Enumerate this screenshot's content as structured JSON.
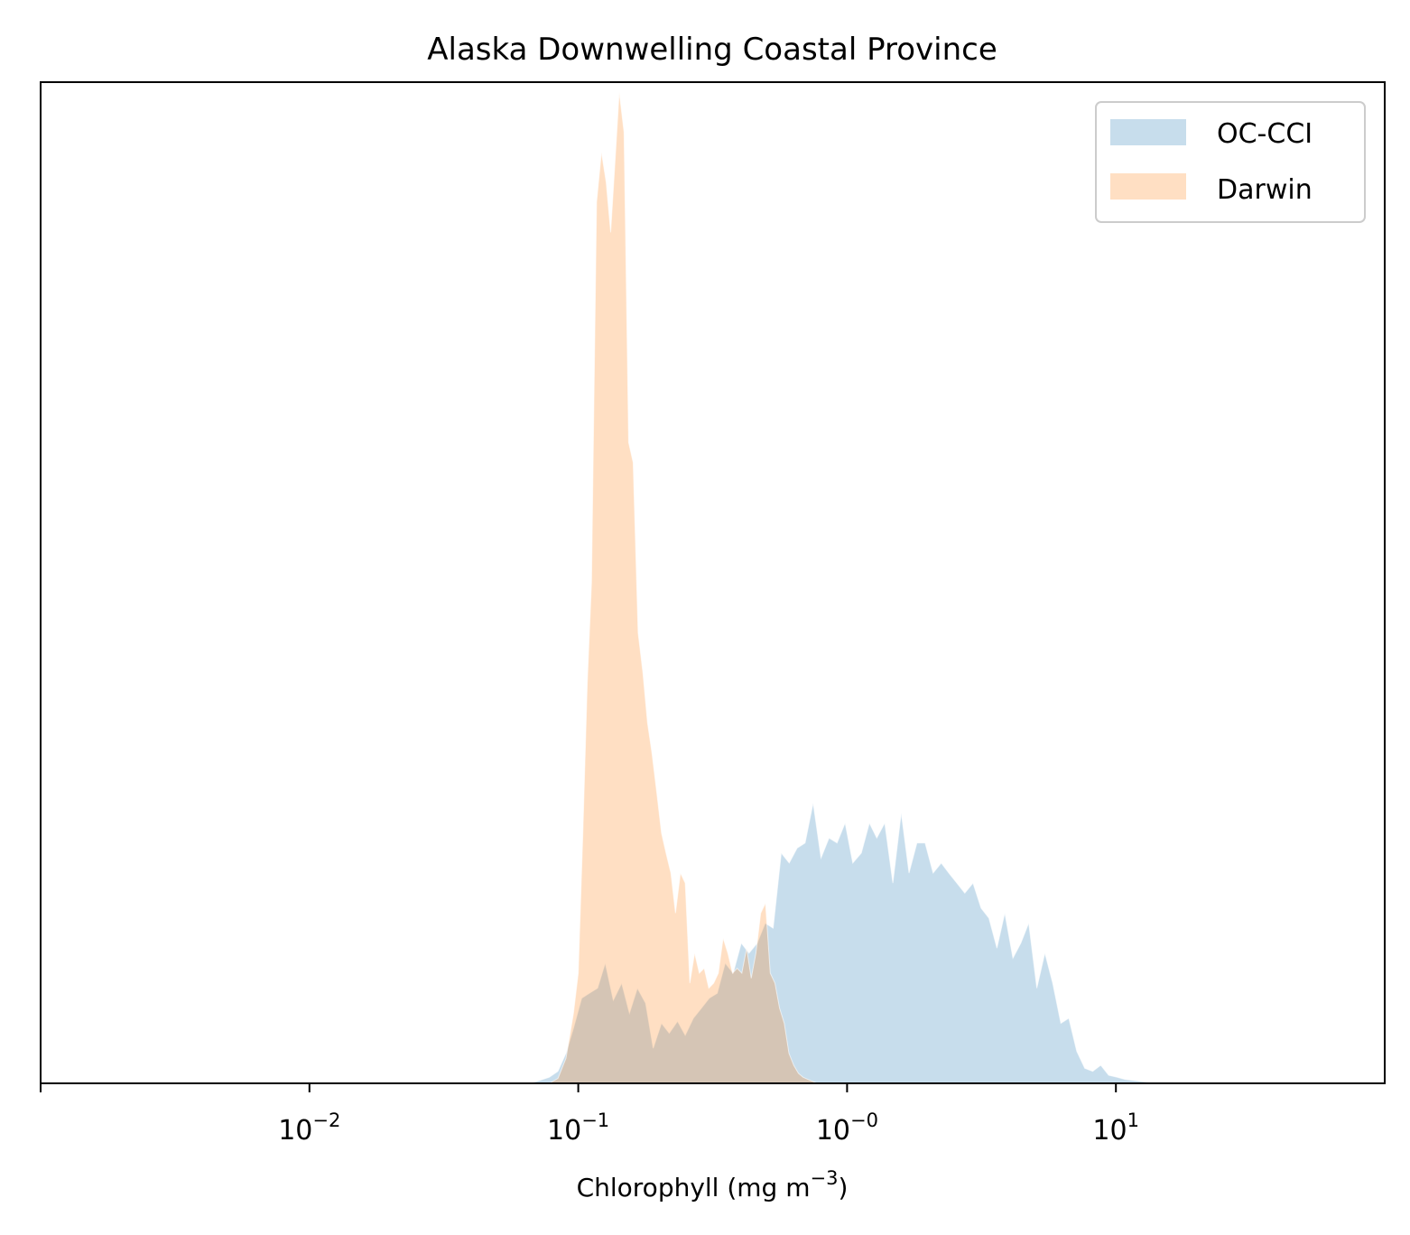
{
  "chart_data": {
    "type": "area",
    "title": "Alaska Downwelling Coastal Province",
    "xlabel": "Chlorophyll  (mg m",
    "xlabel_sup": "−3",
    "xlabel_suffix": ")",
    "ylabel": "",
    "x_scale": "log",
    "xlim": [
      0.001,
      100
    ],
    "ylim": [
      0,
      1.0
    ],
    "y_ticks_visible": false,
    "grid": false,
    "legend_position": "top-right",
    "x_ticks": [
      {
        "value": 0.001,
        "base": "",
        "exp": ""
      },
      {
        "value": 0.01,
        "base": "10",
        "exp": "−2"
      },
      {
        "value": 0.1,
        "base": "10",
        "exp": "−1"
      },
      {
        "value": 1,
        "base": "10",
        "exp": "−0"
      },
      {
        "value": 10,
        "base": "10",
        "exp": "1"
      }
    ],
    "series": [
      {
        "name": "OC-CCI",
        "color": "#1f77b4",
        "fill_opacity": 0.25,
        "x": [
          0.066,
          0.072,
          0.078,
          0.084,
          0.09,
          0.096,
          0.103,
          0.11,
          0.118,
          0.126,
          0.135,
          0.145,
          0.155,
          0.166,
          0.178,
          0.19,
          0.204,
          0.218,
          0.234,
          0.25,
          0.268,
          0.287,
          0.307,
          0.329,
          0.352,
          0.377,
          0.404,
          0.432,
          0.463,
          0.496,
          0.531,
          0.569,
          0.609,
          0.652,
          0.698,
          0.748,
          0.8,
          0.857,
          0.918,
          0.983,
          1.05,
          1.13,
          1.21,
          1.29,
          1.38,
          1.48,
          1.59,
          1.7,
          1.82,
          1.95,
          2.09,
          2.24,
          2.39,
          2.56,
          2.74,
          2.94,
          3.15,
          3.37,
          3.61,
          3.86,
          4.14,
          4.43,
          4.74,
          5.08,
          5.44,
          5.82,
          6.24,
          6.68,
          7.15,
          7.66,
          8.2,
          8.78,
          9.4,
          10.1,
          10.8,
          11.6,
          12.4,
          13.3,
          14.2,
          15.2,
          16.3,
          17.4
        ],
        "y": [
          0.0,
          0.003,
          0.006,
          0.012,
          0.03,
          0.055,
          0.085,
          0.09,
          0.095,
          0.12,
          0.083,
          0.1,
          0.07,
          0.095,
          0.08,
          0.035,
          0.06,
          0.05,
          0.062,
          0.048,
          0.065,
          0.075,
          0.085,
          0.09,
          0.12,
          0.11,
          0.14,
          0.13,
          0.14,
          0.16,
          0.155,
          0.23,
          0.22,
          0.235,
          0.24,
          0.28,
          0.225,
          0.245,
          0.24,
          0.26,
          0.22,
          0.23,
          0.26,
          0.245,
          0.26,
          0.2,
          0.27,
          0.21,
          0.24,
          0.24,
          0.21,
          0.22,
          0.21,
          0.2,
          0.19,
          0.2,
          0.175,
          0.165,
          0.135,
          0.17,
          0.125,
          0.14,
          0.16,
          0.095,
          0.13,
          0.1,
          0.06,
          0.065,
          0.032,
          0.015,
          0.012,
          0.018,
          0.008,
          0.006,
          0.004,
          0.003,
          0.002,
          0.001,
          0.001,
          0.001,
          0.001,
          0.0
        ]
      },
      {
        "name": "Darwin",
        "color": "#ff7f0e",
        "fill_opacity": 0.25,
        "x": [
          0.078,
          0.084,
          0.09,
          0.096,
          0.1,
          0.104,
          0.108,
          0.112,
          0.117,
          0.122,
          0.127,
          0.132,
          0.137,
          0.142,
          0.148,
          0.154,
          0.16,
          0.167,
          0.174,
          0.181,
          0.188,
          0.196,
          0.204,
          0.212,
          0.221,
          0.23,
          0.24,
          0.25,
          0.26,
          0.271,
          0.282,
          0.294,
          0.306,
          0.319,
          0.332,
          0.346,
          0.36,
          0.375,
          0.39,
          0.406,
          0.423,
          0.44,
          0.458,
          0.477,
          0.497,
          0.518,
          0.539,
          0.561,
          0.584,
          0.608,
          0.633,
          0.659,
          0.686,
          0.714,
          0.744,
          0.775
        ],
        "y": [
          0.0,
          0.005,
          0.025,
          0.07,
          0.11,
          0.25,
          0.4,
          0.5,
          0.88,
          0.93,
          0.9,
          0.85,
          0.92,
          0.99,
          0.95,
          0.64,
          0.62,
          0.45,
          0.41,
          0.36,
          0.33,
          0.29,
          0.25,
          0.23,
          0.21,
          0.17,
          0.21,
          0.2,
          0.1,
          0.13,
          0.11,
          0.115,
          0.095,
          0.1,
          0.11,
          0.145,
          0.13,
          0.11,
          0.115,
          0.11,
          0.135,
          0.105,
          0.13,
          0.17,
          0.18,
          0.11,
          0.1,
          0.075,
          0.06,
          0.03,
          0.018,
          0.01,
          0.006,
          0.004,
          0.002,
          0.0
        ]
      }
    ]
  }
}
